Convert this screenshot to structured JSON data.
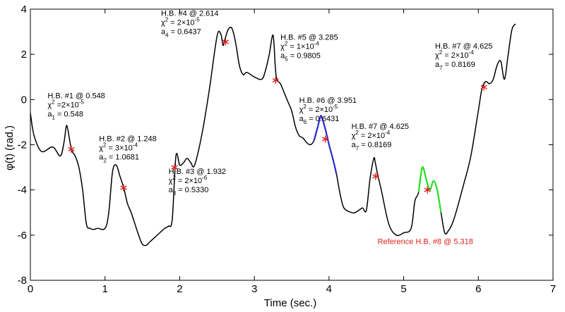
{
  "chart_data": {
    "type": "line",
    "xlabel": "Time (sec.)",
    "ylabel": "φ(t) (rad.)",
    "xlim": [
      0,
      7
    ],
    "ylim": [
      -8,
      4
    ],
    "xticks": [
      "0",
      "1",
      "2",
      "3",
      "4",
      "5",
      "6",
      "7"
    ],
    "yticks": [
      "-8",
      "-6",
      "-4",
      "-2",
      "0",
      "2",
      "4"
    ],
    "grid": false,
    "series": [
      {
        "color": "#000000",
        "x": [
          0.0,
          0.05,
          0.15,
          0.3,
          0.4,
          0.45,
          0.48,
          0.5,
          0.55,
          0.6,
          0.65,
          0.7,
          0.75,
          0.8,
          0.85,
          0.9,
          1.0,
          1.05,
          1.1,
          1.15,
          1.2,
          1.25,
          1.3,
          1.35,
          1.4,
          1.45,
          1.5,
          1.55,
          1.6,
          1.7,
          1.8,
          1.85,
          1.9,
          1.95,
          2.0,
          2.05,
          2.1,
          2.15,
          2.2,
          2.3,
          2.4,
          2.5,
          2.55,
          2.58,
          2.6,
          2.65,
          2.7,
          2.75,
          2.8,
          2.85,
          2.9,
          3.0,
          3.1,
          3.15,
          3.2,
          3.25,
          3.28,
          3.3,
          3.35,
          3.4,
          3.45,
          3.5,
          3.55,
          3.6,
          3.65,
          3.7,
          3.75,
          3.8,
          3.85,
          3.88,
          3.9,
          3.95,
          4.0,
          4.05,
          4.1,
          4.15,
          4.2,
          4.3,
          4.35,
          4.4,
          4.45,
          4.5,
          4.55,
          4.6,
          4.62,
          4.65,
          4.7,
          4.8,
          4.9,
          5.0,
          5.1,
          5.15,
          5.2,
          5.25,
          5.3,
          5.35,
          5.4,
          5.45,
          5.5,
          5.55,
          5.6,
          5.65,
          5.7,
          5.8,
          5.9,
          6.0,
          6.05,
          6.1,
          6.15,
          6.2,
          6.25,
          6.3,
          6.35,
          6.4,
          6.45,
          6.5
        ],
        "y": [
          -0.6,
          -1.6,
          -2.3,
          -2.1,
          -2.5,
          -1.9,
          -1.2,
          -1.3,
          -2.2,
          -2.5,
          -3.0,
          -4.0,
          -5.5,
          -5.7,
          -5.75,
          -5.7,
          -5.7,
          -5.0,
          -3.2,
          -2.9,
          -3.4,
          -3.9,
          -4.6,
          -5.0,
          -5.5,
          -6.0,
          -6.4,
          -6.45,
          -6.3,
          -6.0,
          -5.7,
          -5.6,
          -5.3,
          -2.5,
          -2.9,
          -2.8,
          -2.6,
          -2.8,
          -2.9,
          -1.5,
          0.5,
          2.8,
          2.9,
          2.4,
          2.6,
          3.1,
          3.15,
          2.5,
          1.5,
          1.1,
          1.2,
          1.0,
          0.9,
          1.3,
          2.0,
          2.85,
          1.5,
          0.9,
          0.7,
          0.3,
          -0.1,
          -0.5,
          -1.2,
          -1.6,
          -1.7,
          -1.9,
          -2.0,
          -1.8,
          -1.2,
          -0.8,
          -0.75,
          -1.3,
          -2.0,
          -2.6,
          -3.3,
          -4.2,
          -4.8,
          -5.0,
          -5.0,
          -4.9,
          -4.8,
          -4.9,
          -3.5,
          -2.6,
          -2.8,
          -3.3,
          -4.0,
          -5.5,
          -6.0,
          -5.9,
          -5.7,
          -4.5,
          -4.1,
          -3.0,
          -3.5,
          -4.0,
          -3.6,
          -4.0,
          -5.0,
          -5.9,
          -5.8,
          -5.5,
          -5.0,
          -3.8,
          -2.5,
          -0.5,
          0.5,
          0.8,
          0.7,
          0.9,
          1.5,
          1.7,
          0.9,
          2.0,
          3.1,
          3.35
        ]
      },
      {
        "color": "#2b2bd1",
        "x": [
          3.8,
          3.85,
          3.88,
          3.9,
          3.95,
          4.0,
          4.05,
          4.1
        ],
        "y": [
          -1.8,
          -1.2,
          -0.8,
          -0.75,
          -1.3,
          -2.0,
          -2.6,
          -3.3
        ]
      },
      {
        "color": "#25e025",
        "x": [
          5.2,
          5.25,
          5.3,
          5.35,
          5.4,
          5.45,
          5.5
        ],
        "y": [
          -4.1,
          -3.0,
          -3.5,
          -4.0,
          -3.6,
          -4.0,
          -5.0
        ]
      }
    ],
    "markers": {
      "color": "#e0201b",
      "x": [
        0.548,
        1.248,
        1.932,
        2.614,
        3.285,
        3.951,
        4.625,
        5.318,
        6.075
      ],
      "y": [
        -2.2,
        -3.9,
        -3.0,
        2.55,
        0.85,
        -1.75,
        -3.4,
        -4.0,
        0.55
      ]
    },
    "annotations": [
      {
        "x": 0.23,
        "y": 0.05,
        "lines": [
          {
            "text": "H.B. #1 @ 0.548"
          },
          {
            "text": "χ",
            "sup": "2",
            "after": " =2×10",
            "sup2": "-5"
          },
          {
            "text": "a",
            "sub": "1",
            "after": " =  0.548"
          }
        ]
      },
      {
        "x": 0.92,
        "y": -1.85,
        "lines": [
          {
            "text": "H.B. #2 @ 1.248"
          },
          {
            "text": "χ",
            "sup": "2",
            "after": " = 3×10",
            "sup2": "-4"
          },
          {
            "text": "a",
            "sub": "2",
            "after": " =  1.0681"
          }
        ]
      },
      {
        "x": 1.85,
        "y": -3.3,
        "lines": [
          {
            "text": "H.B. #3 @ 1.932"
          },
          {
            "text": "χ",
            "sup": "2",
            "after": " = 2×10",
            "sup2": "-6"
          },
          {
            "text": "a",
            "sub": "3",
            "after": " =  0.5330"
          }
        ]
      },
      {
        "x": 1.75,
        "y": 3.7,
        "lines": [
          {
            "text": "H.B. #4 @ 2.614"
          },
          {
            "text": "χ",
            "sup": "2",
            "after": " = 2×10",
            "sup2": "-5"
          },
          {
            "text": "a",
            "sub": "4",
            "after": " =  0.6437"
          }
        ]
      },
      {
        "x": 3.35,
        "y": 2.65,
        "lines": [
          {
            "text": "H.B. #5 @ 3.285"
          },
          {
            "text": "χ",
            "sup": "2",
            "after": " = 1×10",
            "sup2": "-4"
          },
          {
            "text": "a",
            "sub": "5",
            "after": " =  0.9805"
          }
        ]
      },
      {
        "x": 3.6,
        "y": -0.15,
        "lines": [
          {
            "text": "H.B. #6 @ 3.951"
          },
          {
            "text": "χ",
            "sup": "2",
            "after": " = 2×10",
            "sup2": "-5"
          },
          {
            "text": "a",
            "sub": "6",
            "after": " =  0.6431"
          }
        ]
      },
      {
        "x": 4.3,
        "y": -1.3,
        "lines": [
          {
            "text": "H.B. #7 @ 4.625"
          },
          {
            "text": "χ",
            "sup": "2",
            "after": " = 2×10",
            "sup2": "-4"
          },
          {
            "text": "a",
            "sub": "7",
            "after": " =  0.8169"
          }
        ]
      },
      {
        "x": 5.42,
        "y": 2.25,
        "lines": [
          {
            "text": "H.B. #7 @ 4.625"
          },
          {
            "text": "χ",
            "sup": "2",
            "after": " = 2×10",
            "sup2": "-4"
          },
          {
            "text": "a",
            "sub": "7",
            "after": " =  0.8169"
          }
        ]
      },
      {
        "x": 4.65,
        "y": -6.4,
        "color": "#e0201b",
        "lines": [
          {
            "text": "Reference H.B. #8 @ 5.318"
          }
        ]
      }
    ]
  }
}
